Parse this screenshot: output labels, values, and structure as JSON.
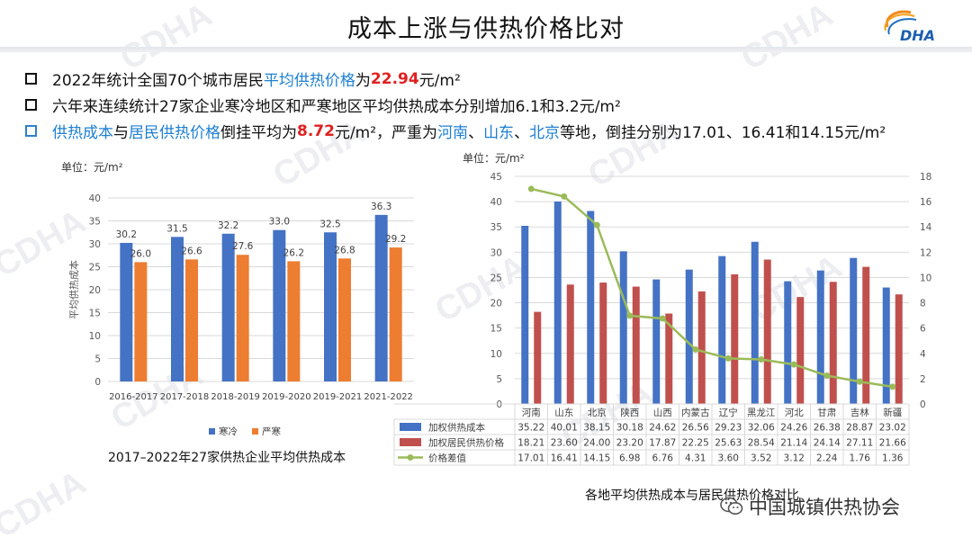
{
  "title": "成本上涨与供热价格比对",
  "logo_text": "DHA",
  "watermark": "CDHA",
  "bullets": [
    {
      "parts": [
        "2022年统计全国70个城市居民",
        "平均供热价格",
        "为",
        "22.94",
        "元/m²"
      ]
    },
    {
      "text": "六年来连续统计27家企业寒冷地区和严寒地区平均供热成本分别增加6.1和3.2元/m²"
    },
    {
      "parts": [
        "供热成本",
        "与",
        "居民供热价格",
        "倒挂平均为",
        "8.72",
        "元/m²，严重为",
        "河南",
        "、",
        "山东",
        "、",
        "北京",
        "等地，倒挂分别为17.01、16.41和14.15元/m²"
      ]
    }
  ],
  "captions": {
    "left": "2017–2022年27家供热企业平均供热成本",
    "right": "各地平均供热成本与居民供热价格对比"
  },
  "wechat": {
    "icon": "wechat-icon",
    "text": "中国城镇供热协会"
  },
  "colors": {
    "blue": "#4472c4",
    "orange": "#ed7d31",
    "red": "#c0504d",
    "green": "#9bbb59",
    "accent_blue": "#1e7fd0",
    "accent_red": "#e02020"
  },
  "chart_data": [
    {
      "type": "bar",
      "unit_label": "单位：元/m²",
      "ylabel": "平均供热成本",
      "ylim": [
        0,
        40
      ],
      "yticks": [
        0,
        5,
        10,
        15,
        20,
        25,
        30,
        35,
        40
      ],
      "categories": [
        "2016-2017",
        "2017-2018",
        "2018-2019",
        "2019-2020",
        "2019-2021",
        "2021-2022"
      ],
      "series": [
        {
          "name": "寒冷",
          "values": [
            30.2,
            31.5,
            32.2,
            33.0,
            32.5,
            36.3
          ],
          "labels": [
            "30.2",
            "31.5",
            "32.2",
            "33.0",
            "32.5",
            "36.3"
          ]
        },
        {
          "name": "严寒",
          "values": [
            26.0,
            26.6,
            27.6,
            26.2,
            26.8,
            29.2
          ],
          "labels": [
            "26.0",
            "26.6",
            "27.6",
            "26.2",
            "26.8",
            "29.2"
          ]
        }
      ],
      "legend": "bottom"
    },
    {
      "type": "bar",
      "unit_label": "单位：元/m²",
      "ylim": [
        0,
        45
      ],
      "yticks": [
        0,
        5,
        10,
        15,
        20,
        25,
        30,
        35,
        40,
        45
      ],
      "y2lim": [
        0,
        18
      ],
      "y2ticks": [
        0,
        2,
        4,
        6,
        8,
        10,
        12,
        14,
        16,
        18
      ],
      "categories": [
        "河南",
        "山东",
        "北京",
        "陕西",
        "山西",
        "内蒙古",
        "辽宁",
        "黑龙江",
        "河北",
        "甘肃",
        "吉林",
        "新疆"
      ],
      "series": [
        {
          "name": "加权供热成本",
          "type": "bar",
          "axis": "left",
          "values": [
            35.22,
            40.01,
            38.15,
            30.18,
            24.62,
            26.56,
            29.23,
            32.06,
            24.26,
            26.38,
            28.87,
            23.02
          ],
          "labels": [
            "35.22",
            "40.01",
            "38.15",
            "30.18",
            "24.62",
            "26.56",
            "29.23",
            "32.06",
            "24.26",
            "26.38",
            "28.87",
            "23.02"
          ]
        },
        {
          "name": "加权居民供热价格",
          "type": "bar",
          "axis": "left",
          "values": [
            18.21,
            23.6,
            24.0,
            23.2,
            17.87,
            22.25,
            25.63,
            28.54,
            21.14,
            24.14,
            27.11,
            21.66
          ],
          "labels": [
            "18.21",
            "23.60",
            "24.00",
            "23.20",
            "17.87",
            "22.25",
            "25.63",
            "28.54",
            "21.14",
            "24.14",
            "27.11",
            "21.66"
          ]
        },
        {
          "name": "价格差值",
          "type": "line",
          "axis": "right",
          "values": [
            17.01,
            16.41,
            14.15,
            6.98,
            6.76,
            4.31,
            3.6,
            3.52,
            3.12,
            2.24,
            1.76,
            1.36
          ],
          "labels": [
            "17.01",
            "16.41",
            "14.15",
            "6.98",
            "6.76",
            "4.31",
            "3.60",
            "3.52",
            "3.12",
            "2.24",
            "1.76",
            "1.36"
          ]
        }
      ],
      "legend": "data-table"
    }
  ]
}
